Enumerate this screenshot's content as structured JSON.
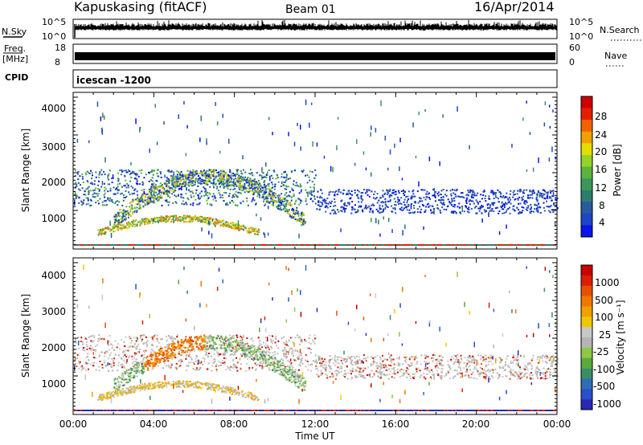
{
  "header": {
    "station": "Kapuskasing (fitACF)",
    "beam": "Beam 01",
    "date": "16/Apr/2014"
  },
  "top_panels": {
    "nsky": {
      "label": "N.Sky",
      "ticks": [
        "10^5",
        "10^0"
      ]
    },
    "nsearch": {
      "label": "N.Search",
      "ticks": [
        "10^5",
        "10^0"
      ]
    },
    "freq": {
      "label_line1": "Freq.",
      "label_line2": "[MHz]",
      "ticks": [
        "18",
        "8"
      ]
    },
    "nave": {
      "label": "Nave",
      "ticks": [
        "60",
        "0"
      ]
    },
    "cpid": {
      "label": "CPID",
      "value": "icescan -1200"
    }
  },
  "power_panel": {
    "ylabel": "Slant Range [km]",
    "yticks": [
      "4000",
      "3000",
      "2000",
      "1000"
    ],
    "colorbar_label": "Power [dB]",
    "colorbar_ticks": [
      "28",
      "24",
      "20",
      "16",
      "12",
      "8",
      "4"
    ],
    "colors": [
      "#0a14e6",
      "#1e46c8",
      "#285aa0",
      "#2d7d6e",
      "#3c965a",
      "#5ab43c",
      "#96d228",
      "#e6dc00",
      "#f0a000",
      "#f06400",
      "#e61e00",
      "#cd0000"
    ]
  },
  "velocity_panel": {
    "ylabel": "Slant Range [km]",
    "yticks": [
      "4000",
      "3000",
      "2000",
      "1000"
    ],
    "colorbar_label": "Velocity [m s⁻¹]",
    "colorbar_ticks": [
      "1000",
      "500",
      "100",
      "25",
      "-25",
      "-100",
      "-500",
      "-1000"
    ],
    "colors": [
      "#2828b4",
      "#2850c8",
      "#2d6eb4",
      "#3c8c64",
      "#5aaa3c",
      "#8cc846",
      "#b4b4b4",
      "#c8c8c8",
      "#f0c800",
      "#f0a000",
      "#f07800",
      "#e65000",
      "#dc1e00",
      "#c80000"
    ]
  },
  "x_axis": {
    "label": "Time UT",
    "ticks": [
      "00:00",
      "04:00",
      "08:00",
      "12:00",
      "16:00",
      "20:00",
      "00:00"
    ]
  },
  "chart_data": {
    "type": "heatmap",
    "title": "Kapuskasing (fitACF)  Beam 01  16/Apr/2014",
    "x": {
      "label": "Time UT",
      "range_hours": [
        0,
        24
      ],
      "ticks": [
        "00:00",
        "04:00",
        "08:00",
        "12:00",
        "16:00",
        "20:00",
        "00:00"
      ]
    },
    "y": {
      "label": "Slant Range [km]",
      "range_km": [
        180,
        4500
      ],
      "ticks": [
        1000,
        2000,
        3000,
        4000
      ]
    },
    "series": [
      {
        "name": "Power [dB]",
        "color_scale": [
          4,
          8,
          12,
          16,
          20,
          24,
          28
        ]
      },
      {
        "name": "Velocity [m s⁻¹]",
        "color_scale": [
          1000,
          500,
          100,
          25,
          -25,
          -100,
          -500,
          -1000
        ]
      }
    ],
    "panels": [
      "N.Sky",
      "N.Search",
      "Freq. [MHz]",
      "Nave",
      "CPID: icescan -1200"
    ]
  }
}
